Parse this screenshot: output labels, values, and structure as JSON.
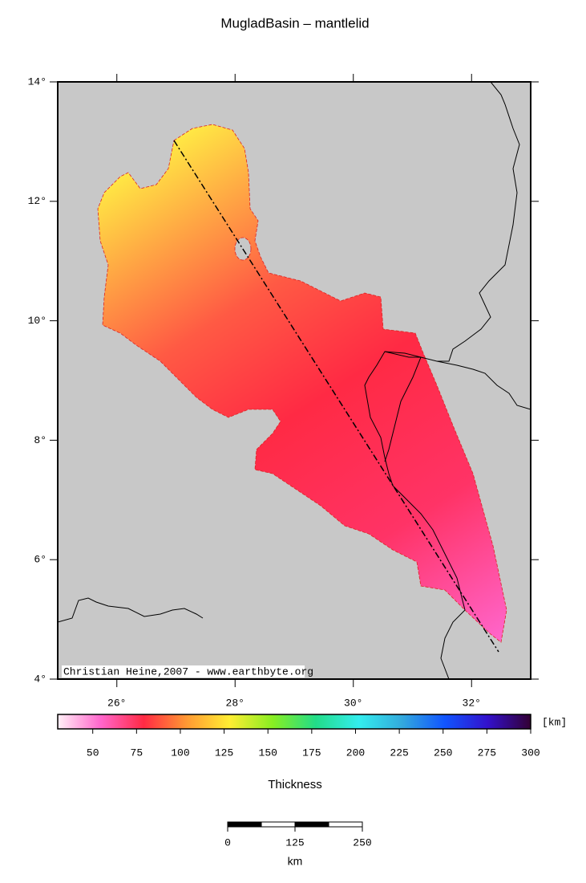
{
  "title": "MugladBasin – mantlelid",
  "map": {
    "lon_range": [
      25,
      33
    ],
    "lat_range": [
      4,
      14
    ],
    "lon_ticks": [
      {
        "value": 26,
        "label": "26°"
      },
      {
        "value": 28,
        "label": "28°"
      },
      {
        "value": 30,
        "label": "30°"
      },
      {
        "value": 32,
        "label": "32°"
      }
    ],
    "lat_ticks": [
      {
        "value": 4,
        "label": "4°"
      },
      {
        "value": 6,
        "label": "6°"
      },
      {
        "value": 8,
        "label": "8°"
      },
      {
        "value": 10,
        "label": "10°"
      },
      {
        "value": 12,
        "label": "12°"
      },
      {
        "value": 14,
        "label": "14°"
      }
    ],
    "credit": "Christian Heine,2007 - www.earthbyte.org"
  },
  "colorbar": {
    "range": [
      30,
      300
    ],
    "ticks": [
      50,
      75,
      100,
      125,
      150,
      175,
      200,
      225,
      250,
      275,
      300
    ],
    "unit": "[km]",
    "label": "Thickness",
    "colors": [
      "#fff0f6",
      "#ff66cc",
      "#ff2a44",
      "#ff9933",
      "#ffee33",
      "#88ee22",
      "#22dd88",
      "#33eeee",
      "#33aadd",
      "#1155ff",
      "#3311cc",
      "#330033"
    ]
  },
  "scalebar": {
    "ticks": [
      0,
      125,
      250
    ],
    "unit": "km"
  }
}
